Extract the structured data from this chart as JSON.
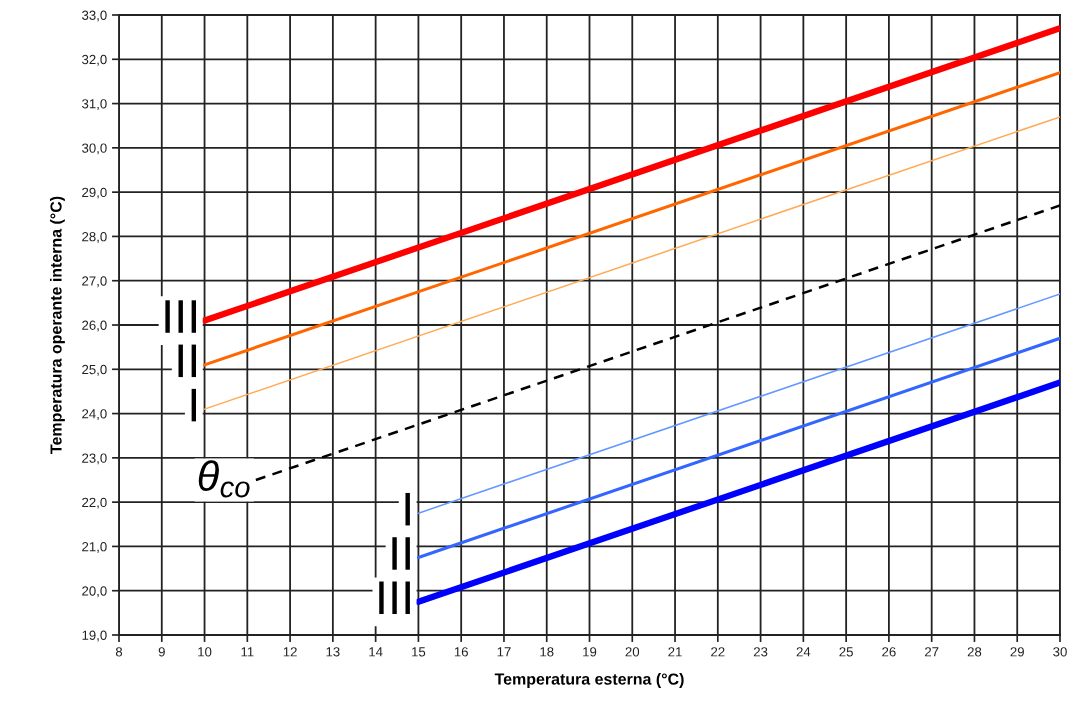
{
  "chart_data": {
    "type": "line",
    "xlabel": "Temperatura esterna (°C)",
    "ylabel": "Temperatura operante interna (°C)",
    "xlim": [
      8,
      30
    ],
    "ylim": [
      19,
      33
    ],
    "xticks": [
      8,
      9,
      10,
      11,
      12,
      13,
      14,
      15,
      16,
      17,
      18,
      19,
      20,
      21,
      22,
      23,
      24,
      25,
      26,
      27,
      28,
      29,
      30
    ],
    "yticks": [
      {
        "value": 19,
        "label": "19,0"
      },
      {
        "value": 20,
        "label": "20,0"
      },
      {
        "value": 21,
        "label": "21,0"
      },
      {
        "value": 22,
        "label": "22,0"
      },
      {
        "value": 23,
        "label": "23,0"
      },
      {
        "value": 24,
        "label": "24,0"
      },
      {
        "value": 25,
        "label": "25,0"
      },
      {
        "value": 26,
        "label": "26,0"
      },
      {
        "value": 27,
        "label": "27,0"
      },
      {
        "value": 28,
        "label": "28,0"
      },
      {
        "value": 29,
        "label": "29,0"
      },
      {
        "value": 30,
        "label": "30,0"
      },
      {
        "value": 31,
        "label": "31,0"
      },
      {
        "value": 32,
        "label": "32,0"
      },
      {
        "value": 33,
        "label": "33,0"
      }
    ],
    "grid": true,
    "series": [
      {
        "name": "III",
        "color": "#ff0000",
        "x": [
          10,
          30
        ],
        "values": [
          26.1,
          32.7
        ]
      },
      {
        "name": "II",
        "color": "#ff6600",
        "x": [
          10,
          30
        ],
        "values": [
          25.1,
          31.7
        ]
      },
      {
        "name": "I",
        "color": "#ffaa55",
        "x": [
          10,
          30
        ],
        "values": [
          24.1,
          30.7
        ]
      },
      {
        "name": "θ$_{co}$",
        "color": "#000000",
        "x": [
          11.2,
          30
        ],
        "values": [
          22.5,
          28.7
        ],
        "line_style": "dashed"
      },
      {
        "name": "I",
        "color": "#6699ff",
        "x": [
          15,
          30
        ],
        "values": [
          21.75,
          26.7
        ]
      },
      {
        "name": "II",
        "color": "#3366ff",
        "x": [
          15,
          30
        ],
        "values": [
          20.75,
          25.7
        ]
      },
      {
        "name": "III",
        "color": "#0000ff",
        "x": [
          15,
          30
        ],
        "values": [
          19.75,
          24.7
        ]
      }
    ]
  }
}
